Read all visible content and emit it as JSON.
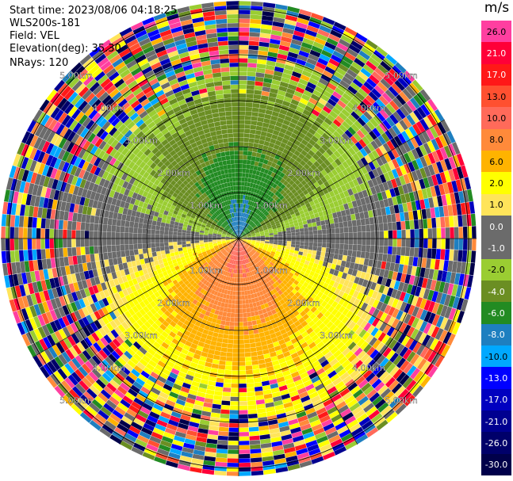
{
  "header": {
    "start_time": "Start time: 2023/08/06 04:18:25",
    "instrument": "WLS200s-181",
    "field": "Field: VEL",
    "elevation": "Elevation(deg): 35.30",
    "nrays": "NRays: 120"
  },
  "ppi": {
    "field": "VEL",
    "n_rays": 120,
    "range_ring_labels": [
      "1.00km",
      "2.00km",
      "3.00km",
      "4.00km",
      "5.00km"
    ],
    "background_color": "#ffffff",
    "grid_color": "#000000"
  },
  "colorbar": {
    "unit": "m/s",
    "classes": [
      {
        "label": "26.0",
        "color": "#ff3fa0"
      },
      {
        "label": "21.0",
        "color": "#ff0038"
      },
      {
        "label": "17.0",
        "color": "#ff1818"
      },
      {
        "label": "13.0",
        "color": "#ff5030"
      },
      {
        "label": "10.0",
        "color": "#ff6a5a"
      },
      {
        "label": "8.0",
        "color": "#ff8a3a"
      },
      {
        "label": "6.0",
        "color": "#ffb300"
      },
      {
        "label": "2.0",
        "color": "#ffff00"
      },
      {
        "label": "1.0",
        "color": "#ffe45a"
      },
      {
        "label": "0.0",
        "color": "#6b6b6b"
      },
      {
        "label": "-1.0",
        "color": "#6b6b6b"
      },
      {
        "label": "-2.0",
        "color": "#9acd32"
      },
      {
        "label": "-4.0",
        "color": "#6b8e23"
      },
      {
        "label": "-6.0",
        "color": "#228b22"
      },
      {
        "label": "-8.0",
        "color": "#1e7fc0"
      },
      {
        "label": "-10.0",
        "color": "#00a8ff"
      },
      {
        "label": "-13.0",
        "color": "#0000ff"
      },
      {
        "label": "-17.0",
        "color": "#0000c0"
      },
      {
        "label": "-21.0",
        "color": "#000090"
      },
      {
        "label": "-26.0",
        "color": "#00006a"
      },
      {
        "label": "-30.0",
        "color": "#00004a"
      }
    ]
  }
}
